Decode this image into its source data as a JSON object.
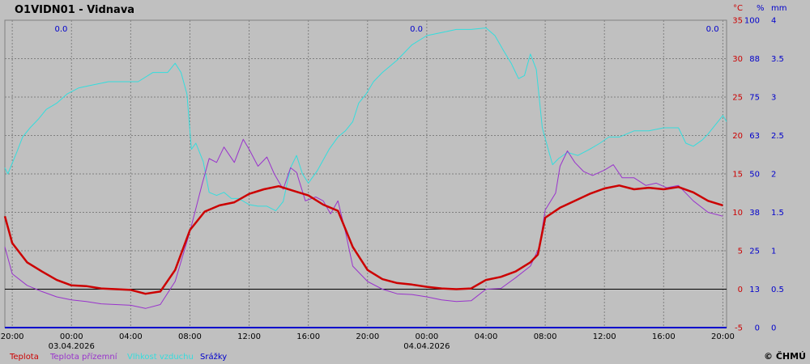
{
  "title": "O1VIDN01 - Vidnava",
  "copyright": "© ČHMÚ",
  "colors": {
    "background": "#c0c0c0",
    "grid": "#808080",
    "zero_line": "#000000",
    "temperature": "#cc0000",
    "ground_temperature": "#9933cc",
    "humidity": "#33dddd",
    "precipitation": "#0000cc"
  },
  "chart_data": {
    "type": "line",
    "x_unit": "hour from 03.04.2026 00:00",
    "xlim": [
      -4.5,
      44.25
    ],
    "x_ticks": [
      {
        "x": -4,
        "label": "20:00",
        "date": ""
      },
      {
        "x": 0,
        "label": "00:00",
        "date": "03.04.2026"
      },
      {
        "x": 4,
        "label": "04:00",
        "date": ""
      },
      {
        "x": 8,
        "label": "08:00",
        "date": ""
      },
      {
        "x": 12,
        "label": "12:00",
        "date": ""
      },
      {
        "x": 16,
        "label": "16:00",
        "date": ""
      },
      {
        "x": 20,
        "label": "20:00",
        "date": ""
      },
      {
        "x": 24,
        "label": "00:00",
        "date": "04.04.2026"
      },
      {
        "x": 28,
        "label": "04:00",
        "date": ""
      },
      {
        "x": 32,
        "label": "08:00",
        "date": ""
      },
      {
        "x": 36,
        "label": "12:00",
        "date": ""
      },
      {
        "x": 40,
        "label": "16:00",
        "date": ""
      },
      {
        "x": 44,
        "label": "20:00",
        "date": ""
      }
    ],
    "axes": [
      {
        "unit": "°C",
        "color": "#cc0000",
        "ticks": [
          "-5",
          "0",
          "5",
          "10",
          "15",
          "20",
          "25",
          "30",
          "35"
        ],
        "range": [
          -5,
          35
        ]
      },
      {
        "unit": "%",
        "color": "#0000cc",
        "ticks": [
          "0",
          "13",
          "25",
          "38",
          "50",
          "63",
          "75",
          "88",
          "100"
        ],
        "range": [
          0,
          100
        ]
      },
      {
        "unit": "mm",
        "color": "#0000cc",
        "ticks": [
          "0",
          "0.5",
          "1",
          "1.5",
          "2",
          "2.5",
          "3",
          "3.5",
          "4"
        ],
        "range": [
          0,
          4
        ]
      }
    ],
    "precip_totals": [
      {
        "x": -0.7,
        "label": "0.0"
      },
      {
        "x": 23.3,
        "label": "0.0"
      },
      {
        "x": 43.3,
        "label": "0.0"
      }
    ],
    "series": [
      {
        "name": "Teplota",
        "axis": "°C",
        "color": "#cc0000",
        "width": 2.5,
        "points": [
          [
            -4.5,
            9.5
          ],
          [
            -4,
            6
          ],
          [
            -3,
            3.5
          ],
          [
            -2,
            2.3
          ],
          [
            -1,
            1.2
          ],
          [
            0,
            0.5
          ],
          [
            1,
            0.4
          ],
          [
            2,
            0.1
          ],
          [
            3,
            0
          ],
          [
            4,
            -0.1
          ],
          [
            5,
            -0.6
          ],
          [
            6,
            -0.3
          ],
          [
            7,
            2.5
          ],
          [
            8,
            7.7
          ],
          [
            9,
            10.1
          ],
          [
            10,
            10.9
          ],
          [
            11,
            11.3
          ],
          [
            12,
            12.4
          ],
          [
            13,
            13
          ],
          [
            14,
            13.4
          ],
          [
            15,
            12.8
          ],
          [
            16,
            12.2
          ],
          [
            17,
            11
          ],
          [
            18,
            10.2
          ],
          [
            19,
            5.5
          ],
          [
            20,
            2.5
          ],
          [
            21,
            1.3
          ],
          [
            22,
            0.8
          ],
          [
            23,
            0.6
          ],
          [
            24,
            0.3
          ],
          [
            25,
            0.1
          ],
          [
            26,
            0
          ],
          [
            27,
            0.1
          ],
          [
            28,
            1.2
          ],
          [
            29,
            1.6
          ],
          [
            30,
            2.3
          ],
          [
            31,
            3.5
          ],
          [
            31.5,
            4.5
          ],
          [
            32,
            9.3
          ],
          [
            33,
            10.6
          ],
          [
            34,
            11.5
          ],
          [
            35,
            12.4
          ],
          [
            36,
            13.1
          ],
          [
            37,
            13.5
          ],
          [
            38,
            13
          ],
          [
            39,
            13.2
          ],
          [
            40,
            13
          ],
          [
            41,
            13.3
          ],
          [
            42,
            12.6
          ],
          [
            43,
            11.5
          ],
          [
            44,
            10.9
          ]
        ]
      },
      {
        "name": "Teplota přízemní",
        "axis": "°C",
        "color": "#9933cc",
        "width": 1,
        "points": [
          [
            -4.5,
            5.5
          ],
          [
            -4,
            2
          ],
          [
            -3,
            0.5
          ],
          [
            -2,
            -0.3
          ],
          [
            -1,
            -1
          ],
          [
            0,
            -1.4
          ],
          [
            1,
            -1.6
          ],
          [
            2,
            -1.9
          ],
          [
            3,
            -2
          ],
          [
            4,
            -2.1
          ],
          [
            5,
            -2.5
          ],
          [
            6,
            -2
          ],
          [
            7,
            1
          ],
          [
            8,
            7.5
          ],
          [
            8.8,
            13.5
          ],
          [
            9.3,
            17
          ],
          [
            9.8,
            16.5
          ],
          [
            10.3,
            18.5
          ],
          [
            11,
            16.5
          ],
          [
            11.6,
            19.5
          ],
          [
            12,
            18.2
          ],
          [
            12.6,
            16
          ],
          [
            13.2,
            17.2
          ],
          [
            13.7,
            15
          ],
          [
            14.3,
            13
          ],
          [
            14.8,
            15.8
          ],
          [
            15.2,
            15.2
          ],
          [
            15.8,
            11.5
          ],
          [
            16.5,
            12
          ],
          [
            17,
            11.5
          ],
          [
            17.5,
            9.8
          ],
          [
            18,
            11.5
          ],
          [
            18.5,
            7.5
          ],
          [
            19,
            3
          ],
          [
            20,
            1
          ],
          [
            21,
            0
          ],
          [
            22,
            -0.6
          ],
          [
            23,
            -0.7
          ],
          [
            24,
            -1
          ],
          [
            25,
            -1.4
          ],
          [
            26,
            -1.6
          ],
          [
            27,
            -1.5
          ],
          [
            28,
            0
          ],
          [
            29,
            0.1
          ],
          [
            30,
            1.5
          ],
          [
            31,
            3
          ],
          [
            31.6,
            5.5
          ],
          [
            32,
            10.3
          ],
          [
            32.7,
            12.5
          ],
          [
            33,
            16
          ],
          [
            33.5,
            18
          ],
          [
            34,
            16.5
          ],
          [
            34.6,
            15.3
          ],
          [
            35.2,
            14.8
          ],
          [
            36,
            15.5
          ],
          [
            36.6,
            16.2
          ],
          [
            37.2,
            14.5
          ],
          [
            38,
            14.5
          ],
          [
            38.8,
            13.5
          ],
          [
            39.5,
            13.8
          ],
          [
            40.2,
            13.2
          ],
          [
            41,
            13.5
          ],
          [
            42,
            11.5
          ],
          [
            43,
            10
          ],
          [
            44,
            9.5
          ]
        ]
      },
      {
        "name": "Vlhkost vzduchu",
        "axis": "%",
        "color": "#33dddd",
        "width": 1,
        "points": [
          [
            -4.5,
            52
          ],
          [
            -4.3,
            50
          ],
          [
            -3.7,
            57
          ],
          [
            -3.3,
            62
          ],
          [
            -2.8,
            65
          ],
          [
            -2.2,
            68
          ],
          [
            -1.7,
            71
          ],
          [
            -1,
            73
          ],
          [
            -0.3,
            76
          ],
          [
            0.5,
            78
          ],
          [
            1.5,
            79
          ],
          [
            2.5,
            80
          ],
          [
            3.5,
            80
          ],
          [
            4.5,
            80
          ],
          [
            5.5,
            83
          ],
          [
            6.5,
            83
          ],
          [
            7,
            86
          ],
          [
            7.4,
            83
          ],
          [
            7.8,
            76
          ],
          [
            8.1,
            58
          ],
          [
            8.4,
            60
          ],
          [
            8.9,
            54
          ],
          [
            9.3,
            44
          ],
          [
            9.8,
            43
          ],
          [
            10.3,
            44
          ],
          [
            10.8,
            42
          ],
          [
            11.3,
            42
          ],
          [
            12,
            40
          ],
          [
            12.6,
            39.5
          ],
          [
            13.2,
            39.5
          ],
          [
            13.8,
            38
          ],
          [
            14.3,
            41
          ],
          [
            14.8,
            52
          ],
          [
            15.2,
            56
          ],
          [
            15.6,
            50
          ],
          [
            16,
            47
          ],
          [
            16.6,
            51
          ],
          [
            17.4,
            58
          ],
          [
            18,
            62
          ],
          [
            18.5,
            64
          ],
          [
            19,
            67
          ],
          [
            19.4,
            73
          ],
          [
            19.9,
            76
          ],
          [
            20.4,
            80
          ],
          [
            21,
            83
          ],
          [
            22,
            87
          ],
          [
            23,
            92
          ],
          [
            24,
            95
          ],
          [
            25,
            96
          ],
          [
            26,
            97
          ],
          [
            27,
            97
          ],
          [
            28,
            97.5
          ],
          [
            28.6,
            95
          ],
          [
            29.2,
            90
          ],
          [
            29.7,
            86
          ],
          [
            30.2,
            81
          ],
          [
            30.6,
            82
          ],
          [
            31,
            89
          ],
          [
            31.4,
            84
          ],
          [
            31.8,
            65
          ],
          [
            32.2,
            58
          ],
          [
            32.5,
            53
          ],
          [
            32.9,
            55
          ],
          [
            33.5,
            57
          ],
          [
            34.2,
            56
          ],
          [
            35,
            58
          ],
          [
            35.7,
            60
          ],
          [
            36.3,
            62
          ],
          [
            37,
            62
          ],
          [
            38,
            64
          ],
          [
            39,
            64
          ],
          [
            40,
            65
          ],
          [
            41,
            65
          ],
          [
            41.5,
            60
          ],
          [
            42,
            59
          ],
          [
            42.6,
            61
          ],
          [
            43,
            63
          ],
          [
            43.5,
            66
          ],
          [
            44,
            69
          ],
          [
            44.25,
            67
          ]
        ]
      },
      {
        "name": "Srážky",
        "axis": "mm",
        "color": "#0000cc",
        "width": 2,
        "points": [
          [
            -4.5,
            0
          ],
          [
            44.25,
            0
          ]
        ]
      }
    ]
  }
}
